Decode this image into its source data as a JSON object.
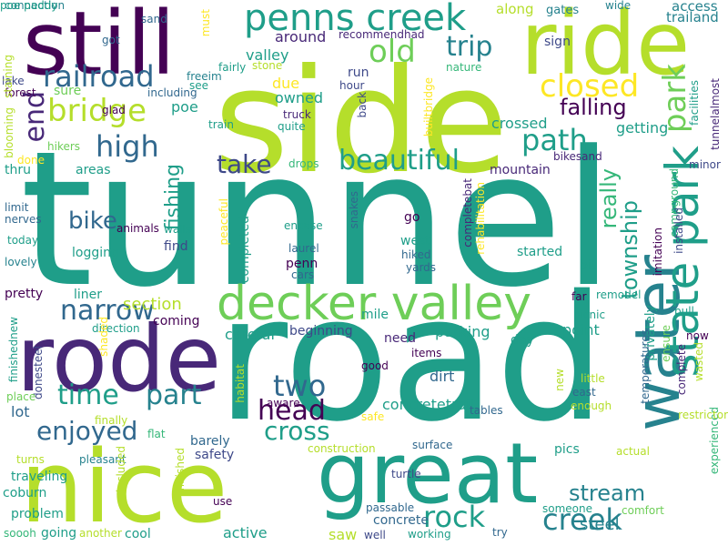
{
  "palette": {
    "dark_purple": "#440154",
    "purple": "#482878",
    "indigo": "#3e4989",
    "blue": "#31688e",
    "teal_blue": "#26828e",
    "teal": "#1f9e89",
    "green": "#35b779",
    "light_green": "#6ece58",
    "lime": "#b5de2b",
    "yellow": "#fde725",
    "background": "#ffffff"
  },
  "words": [
    "tunnel",
    "road",
    "side",
    "nice",
    "still",
    "ride",
    "rode",
    "great",
    "water",
    "decker valley",
    "penns creek",
    "railroad",
    "bridge",
    "high",
    "path",
    "closed",
    "park",
    "state park",
    "beautiful",
    "take",
    "trip",
    "old",
    "end",
    "bike",
    "fishing",
    "narrow",
    "time",
    "part",
    "two",
    "head",
    "enjoyed",
    "cross",
    "rock",
    "creek",
    "stream",
    "really",
    "township",
    "falling",
    "along",
    "access",
    "trailand",
    "gates",
    "wide",
    "sand",
    "must",
    "got",
    "connection",
    "recommendhad",
    "around",
    "valley",
    "stone",
    "fairly",
    "freeim",
    "see",
    "including",
    "nature",
    "lake",
    "forest",
    "sure",
    "glad",
    "poe",
    "train",
    "quite",
    "truck",
    "owned",
    "due",
    "run",
    "hour",
    "back",
    "builtbridge",
    "crossed",
    "getting",
    "sign",
    "facilities",
    "tunnelalmost",
    "staining",
    "blooming",
    "done",
    "hikers",
    "thru",
    "areas",
    "drops",
    "mountain",
    "bikesand",
    "minor",
    "campground",
    "limit",
    "nerves",
    "today",
    "lovely",
    "animals",
    "walls",
    "find",
    "peaceful",
    "logging",
    "completed",
    "encase",
    "snakes",
    "completebat",
    "rehabilitation",
    "go",
    "west",
    "hiked",
    "yards",
    "laurel",
    "penn",
    "cars",
    "started",
    "bit",
    "imitation",
    "installed",
    "pretty",
    "liner",
    "section",
    "far",
    "remodel",
    "pull",
    "finishednew",
    "direction",
    "shaded",
    "coming",
    "careful",
    "beginning",
    "mile",
    "parking",
    "picnic",
    "privately",
    "now",
    "ensure",
    "need",
    "day",
    "point",
    "temperatures",
    "items",
    "donesteel",
    "place",
    "lot",
    "finally",
    "aware",
    "habitat",
    "concretetrail",
    "dirt",
    "good",
    "safe",
    "tables",
    "new",
    "little",
    "east",
    "enough",
    "wasted",
    "complete",
    "experienced",
    "restrictor",
    "barely",
    "flat",
    "safety",
    "construction",
    "surface",
    "pics",
    "actual",
    "turns",
    "pleasant",
    "included",
    "finished",
    "traveling",
    "coburn",
    "problem",
    "going",
    "cool",
    "another",
    "soooh",
    "use",
    "active",
    "passable",
    "concrete",
    "saw",
    "well",
    "working",
    "turtle",
    "try",
    "someone",
    "comfort",
    "steel",
    "poe paddy"
  ]
}
